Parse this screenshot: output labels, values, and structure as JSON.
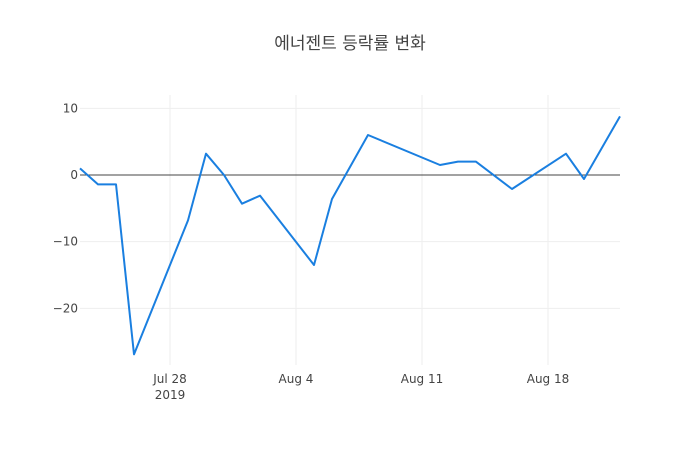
{
  "chart_data": {
    "type": "line",
    "title": "에너젠트 등락률 변화",
    "xlabel": "",
    "ylabel": "",
    "grid": true,
    "legend": "none",
    "line_color": "#1a7fe0",
    "x_tick_labels": [
      {
        "date": "2019-07-28",
        "label": "Jul 28",
        "sublabel": "2019"
      },
      {
        "date": "2019-08-04",
        "label": "Aug 4",
        "sublabel": ""
      },
      {
        "date": "2019-08-11",
        "label": "Aug 11",
        "sublabel": ""
      },
      {
        "date": "2019-08-18",
        "label": "Aug 18",
        "sublabel": ""
      }
    ],
    "y_ticks": [
      10,
      0,
      -10,
      -20
    ],
    "y_tick_labels": [
      "10",
      "0",
      "−10",
      "−20"
    ],
    "xlim": [
      "2019-07-23",
      "2019-08-22"
    ],
    "ylim": [
      -28.5,
      12
    ],
    "series": [
      {
        "name": "",
        "x": [
          "2019-07-23",
          "2019-07-24",
          "2019-07-25",
          "2019-07-26",
          "2019-07-29",
          "2019-07-30",
          "2019-07-31",
          "2019-08-01",
          "2019-08-02",
          "2019-08-05",
          "2019-08-06",
          "2019-08-08",
          "2019-08-12",
          "2019-08-13",
          "2019-08-14",
          "2019-08-16",
          "2019-08-19",
          "2019-08-20",
          "2019-08-22"
        ],
        "y": [
          1.0,
          -1.4,
          -1.4,
          -26.9,
          -6.8,
          3.2,
          0.0,
          -4.3,
          -3.1,
          -13.5,
          -3.6,
          6.0,
          1.5,
          2.0,
          2.0,
          -2.1,
          3.2,
          -0.6,
          8.8
        ]
      }
    ]
  }
}
